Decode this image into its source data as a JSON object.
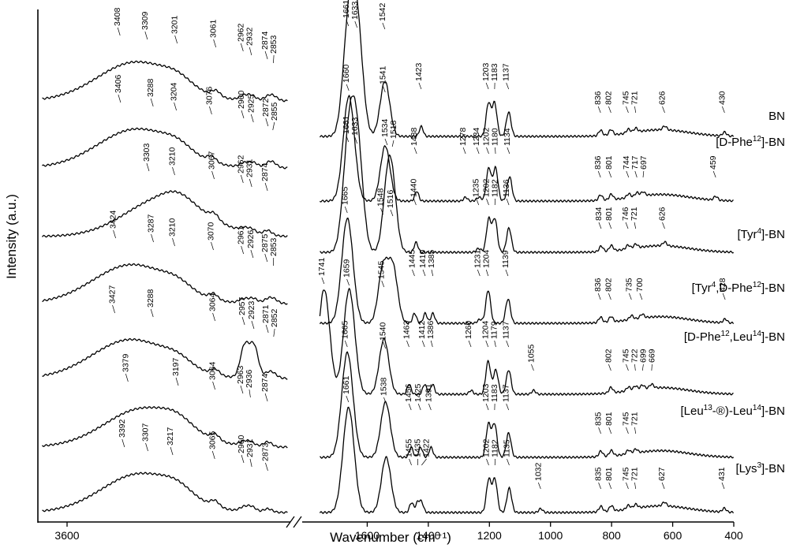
{
  "chart_data": {
    "type": "line",
    "xlabel": "Wavenumber (cm⁻¹)",
    "ylabel": "Intensity (a.u.)",
    "x_ticks": [
      3600,
      1600,
      1400,
      1200,
      1000,
      800,
      600,
      400
    ],
    "xlim_high_region": [
      3700,
      2800
    ],
    "xlim_low_region": [
      1800,
      400
    ],
    "axis_break": true,
    "series": [
      {
        "name": "BN",
        "peaks_high": [
          3408,
          3309,
          3201,
          3061,
          2962,
          2932,
          2874,
          2853
        ],
        "peaks_low": [
          1661,
          1633,
          1542,
          1423,
          1203,
          1183,
          1137,
          836,
          802,
          745,
          721,
          626,
          430
        ]
      },
      {
        "name": "[D-Phe12]-BN",
        "peaks_high": [
          3406,
          3288,
          3204,
          3076,
          2960,
          2925,
          2872,
          2855
        ],
        "peaks_low": [
          1660,
          1541,
          1438,
          1278,
          1234,
          1202,
          1180,
          1134,
          836,
          801,
          744,
          717,
          697,
          459
        ]
      },
      {
        "name": "[Tyr4]-BN",
        "peaks_high": [
          3303,
          3210,
          3067,
          2962,
          2931,
          2874
        ],
        "peaks_low": [
          1661,
          1633,
          1534,
          1518,
          1440,
          1235,
          1202,
          1182,
          1136,
          834,
          801,
          746,
          721,
          626
        ]
      },
      {
        "name": "[Tyr4,D-Phe12]-BN",
        "peaks_high": [
          3424,
          3287,
          3210,
          3070,
          2961,
          2926,
          2875,
          2853
        ],
        "peaks_low": [
          1665,
          1548,
          1516,
          1445,
          1410,
          1385,
          1231,
          1204,
          1139,
          836,
          802,
          735,
          700,
          428
        ]
      },
      {
        "name": "[D-Phe12,Leu14]-BN",
        "peaks_high": [
          3427,
          3288,
          3064,
          2957,
          2923,
          2871,
          2852
        ],
        "peaks_low": [
          1741,
          1659,
          1545,
          1463,
          1412,
          1386,
          1260,
          1204,
          1179,
          1137,
          1055,
          802,
          745,
          722,
          699,
          669
        ]
      },
      {
        "name": "[Leu13-®)-Leu14]-BN",
        "peaks_high": [
          3379,
          3197,
          3064,
          2963,
          2936,
          2874
        ],
        "peaks_low": [
          1665,
          1540,
          1456,
          1425,
          1391,
          1203,
          1183,
          1137,
          835,
          801,
          745,
          721
        ]
      },
      {
        "name": "[Lys3]-BN",
        "peaks_high": [
          3392,
          3307,
          3217,
          3065,
          2960,
          2931,
          2873
        ],
        "peaks_low": [
          1661,
          1538,
          1455,
          1435,
          1422,
          1202,
          1182,
          1135,
          1032,
          835,
          801,
          745,
          721,
          627,
          431
        ]
      }
    ]
  },
  "labels": {
    "series_names": [
      [
        "BN"
      ],
      [
        "[D-Phe",
        "12",
        "]-BN"
      ],
      [
        "[Tyr",
        "4",
        "]-BN"
      ],
      [
        "[Tyr",
        "4",
        ",D-Phe",
        "12",
        "]-BN"
      ],
      [
        "[D-Phe",
        "12",
        ",Leu",
        "14",
        "]-BN"
      ],
      [
        "[Leu",
        "13",
        "-®)-Leu",
        "14",
        "]-BN"
      ],
      [
        "[Lys",
        "3",
        "]-BN"
      ]
    ]
  }
}
